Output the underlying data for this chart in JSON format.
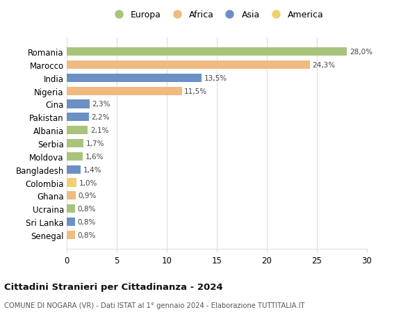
{
  "categories": [
    "Romania",
    "Marocco",
    "India",
    "Nigeria",
    "Cina",
    "Pakistan",
    "Albania",
    "Serbia",
    "Moldova",
    "Bangladesh",
    "Colombia",
    "Ghana",
    "Ucraina",
    "Sri Lanka",
    "Senegal"
  ],
  "values": [
    28.0,
    24.3,
    13.5,
    11.5,
    2.3,
    2.2,
    2.1,
    1.7,
    1.6,
    1.4,
    1.0,
    0.9,
    0.8,
    0.8,
    0.8
  ],
  "labels": [
    "28,0%",
    "24,3%",
    "13,5%",
    "11,5%",
    "2,3%",
    "2,2%",
    "2,1%",
    "1,7%",
    "1,6%",
    "1,4%",
    "1,0%",
    "0,9%",
    "0,8%",
    "0,8%",
    "0,8%"
  ],
  "continents": [
    "Europa",
    "Africa",
    "Asia",
    "Africa",
    "Asia",
    "Asia",
    "Europa",
    "Europa",
    "Europa",
    "Asia",
    "America",
    "Africa",
    "Europa",
    "Asia",
    "Africa"
  ],
  "continent_colors": {
    "Europa": "#a8c47c",
    "Africa": "#f0ba80",
    "Asia": "#6b90c4",
    "America": "#f0d070"
  },
  "legend_order": [
    "Europa",
    "Africa",
    "Asia",
    "America"
  ],
  "title": "Cittadini Stranieri per Cittadinanza - 2024",
  "subtitle": "COMUNE DI NOGARA (VR) - Dati ISTAT al 1° gennaio 2024 - Elaborazione TUTTITALIA.IT",
  "xlim": [
    0,
    30
  ],
  "xticks": [
    0,
    5,
    10,
    15,
    20,
    25,
    30
  ],
  "background_color": "#ffffff",
  "bar_height": 0.65,
  "grid_color": "#dddddd"
}
